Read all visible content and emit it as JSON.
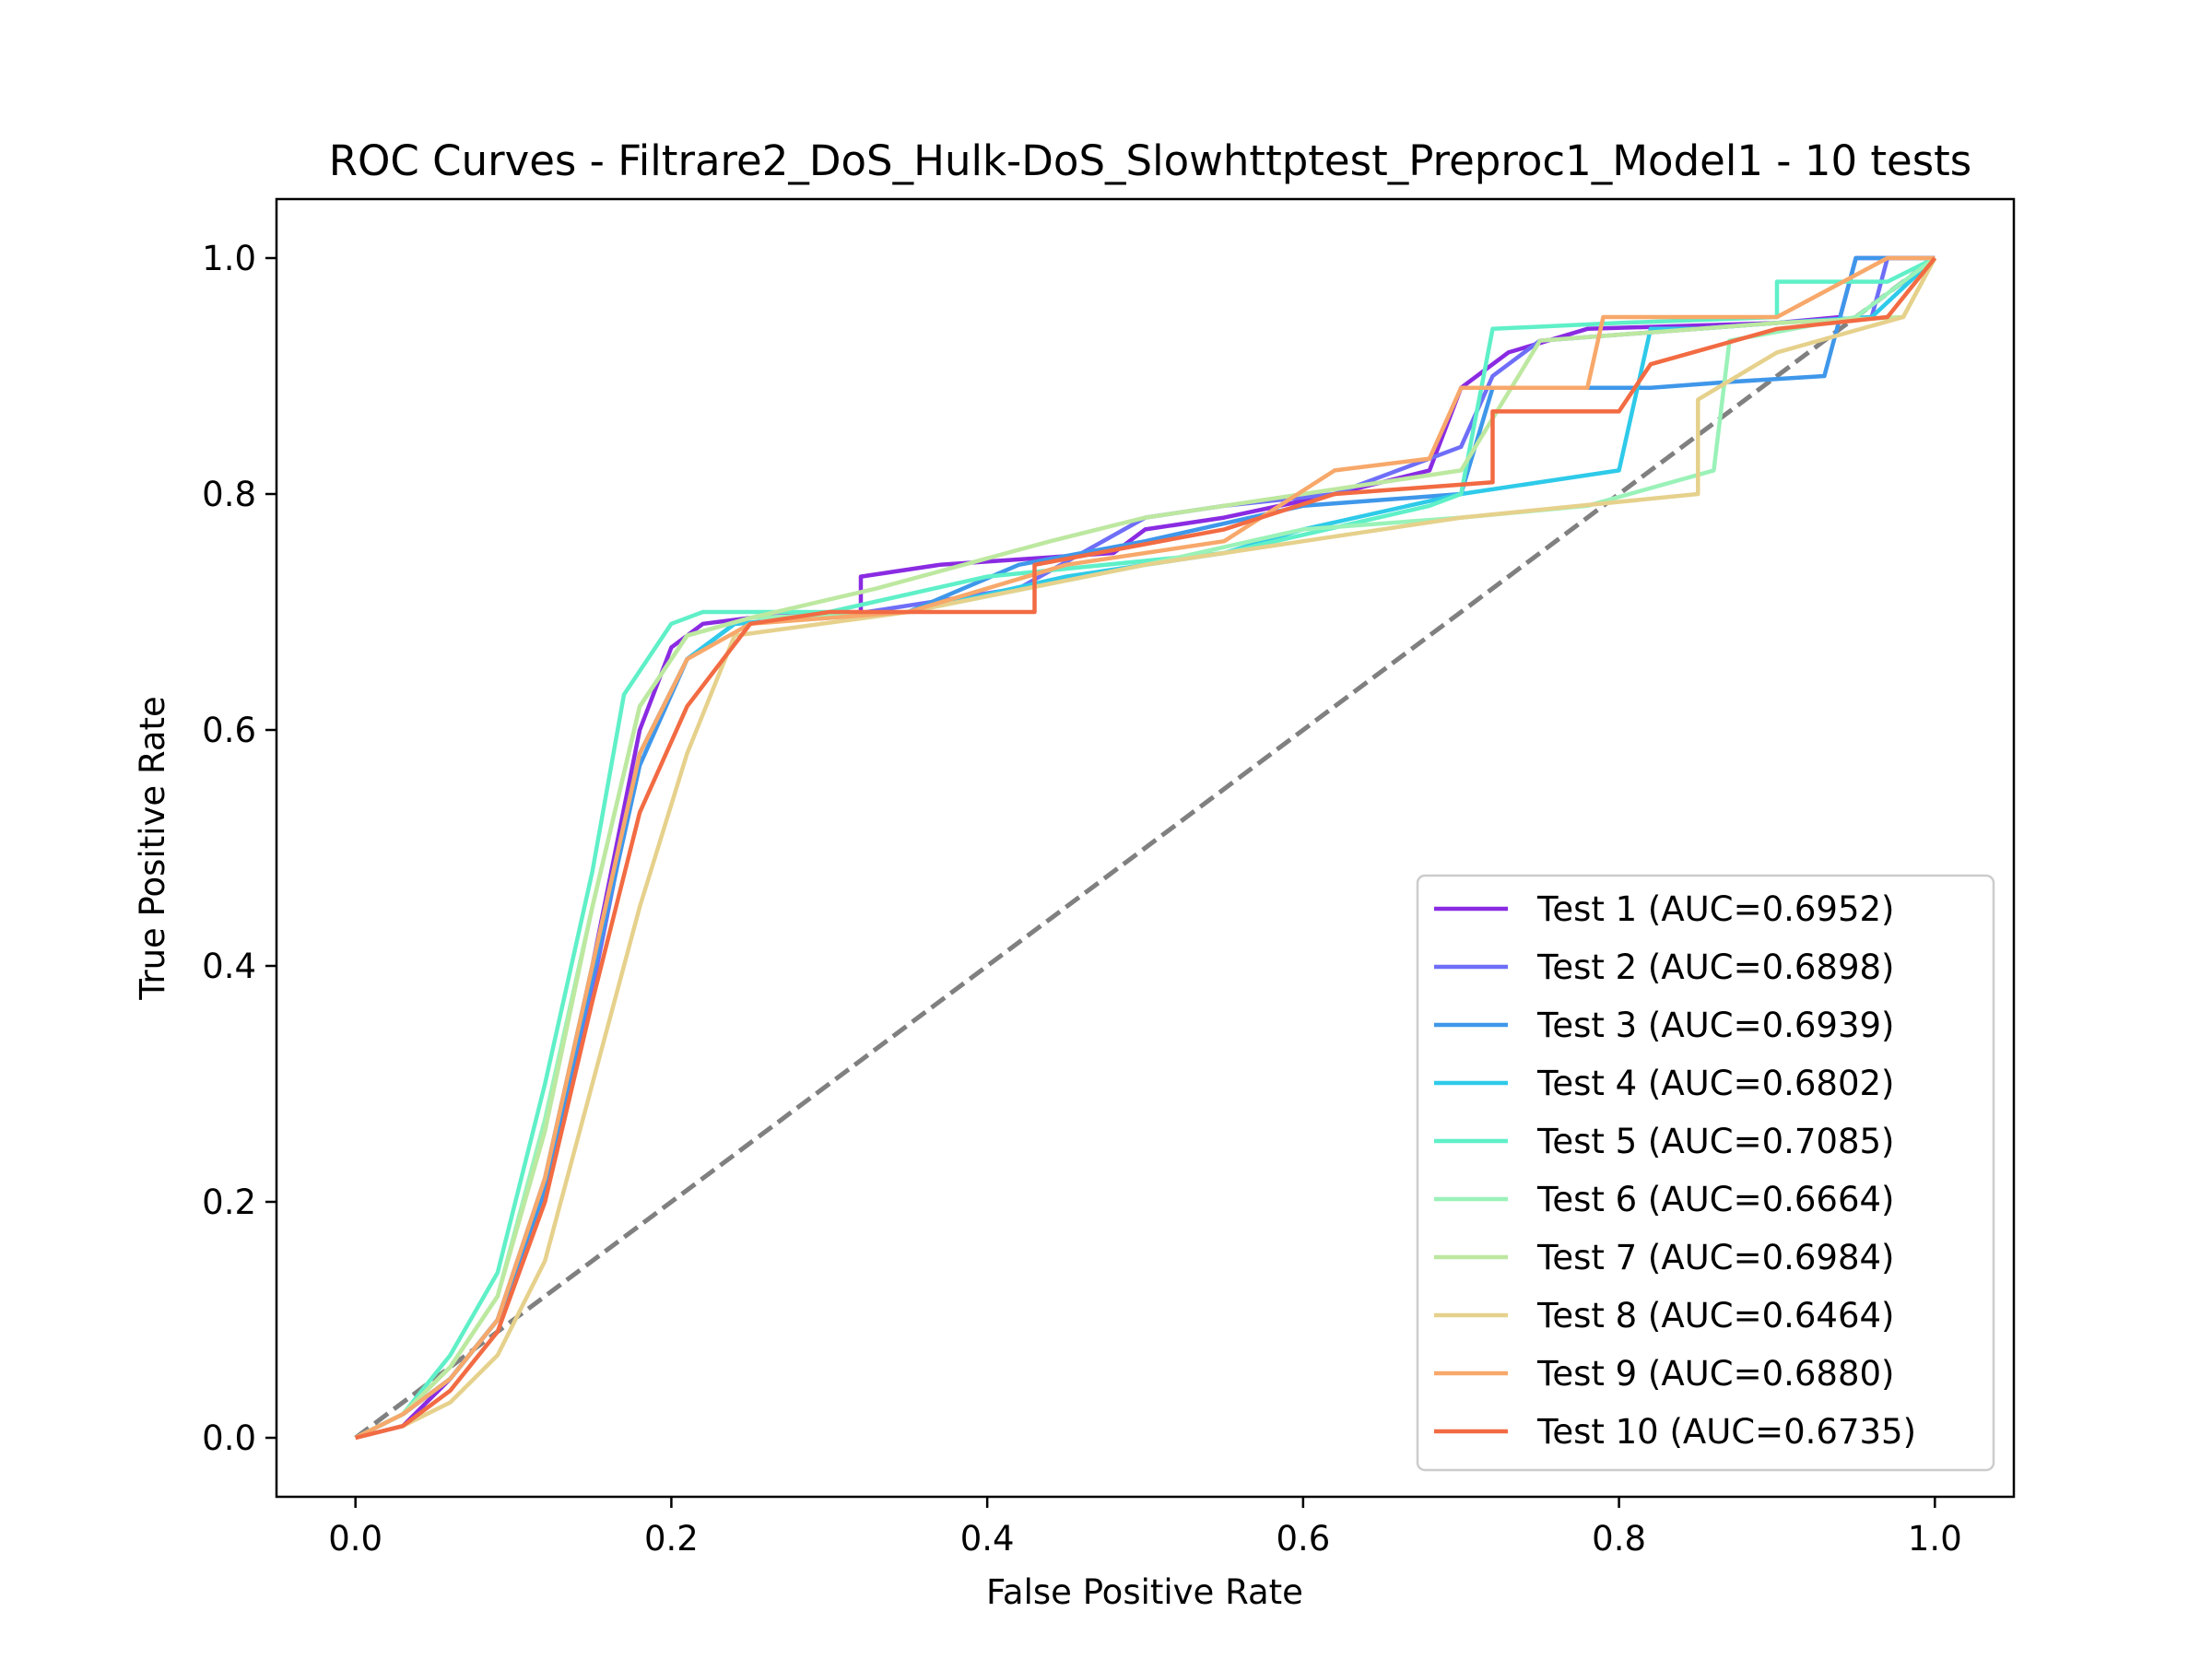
{
  "chart_data": {
    "type": "line",
    "title": "ROC Curves - Filtrare2_DoS_Hulk-DoS_Slowhttptest_Preproc1_Model1 - 10 tests",
    "xlabel": "False Positive Rate",
    "ylabel": "True Positive Rate",
    "xlim": [
      -0.05,
      1.05
    ],
    "ylim": [
      -0.05,
      1.05
    ],
    "xticks": [
      "0.0",
      "0.2",
      "0.4",
      "0.6",
      "0.8",
      "1.0"
    ],
    "yticks": [
      "0.0",
      "0.2",
      "0.4",
      "0.6",
      "0.8",
      "1.0"
    ],
    "grid": false,
    "legend_position": "lower-right",
    "diagonal": {
      "x": [
        0,
        1
      ],
      "y": [
        0,
        1
      ],
      "color": "#808080",
      "style": "dashed"
    },
    "series": [
      {
        "name": "Test 1 (AUC=0.6952)",
        "color": "#8a2be2",
        "x": [
          0,
          0.03,
          0.06,
          0.09,
          0.12,
          0.15,
          0.18,
          0.2,
          0.22,
          0.25,
          0.32,
          0.32,
          0.37,
          0.48,
          0.5,
          0.55,
          0.62,
          0.68,
          0.7,
          0.73,
          0.78,
          0.9,
          0.94,
          0.95,
          0.97,
          1.0
        ],
        "y": [
          0,
          0.01,
          0.05,
          0.1,
          0.22,
          0.4,
          0.6,
          0.67,
          0.69,
          0.695,
          0.7,
          0.73,
          0.74,
          0.75,
          0.77,
          0.78,
          0.8,
          0.82,
          0.89,
          0.92,
          0.94,
          0.945,
          0.95,
          1.0,
          1.0,
          1.0
        ]
      },
      {
        "name": "Test 2 (AUC=0.6898)",
        "color": "#6e6ef8",
        "x": [
          0,
          0.03,
          0.06,
          0.09,
          0.12,
          0.15,
          0.18,
          0.21,
          0.24,
          0.3,
          0.42,
          0.5,
          0.55,
          0.62,
          0.7,
          0.72,
          0.75,
          0.85,
          0.9,
          0.96,
          0.97,
          1.0
        ],
        "y": [
          0,
          0.02,
          0.05,
          0.1,
          0.21,
          0.38,
          0.58,
          0.66,
          0.69,
          0.695,
          0.72,
          0.78,
          0.79,
          0.8,
          0.84,
          0.9,
          0.93,
          0.94,
          0.945,
          0.95,
          1.0,
          1.0
        ]
      },
      {
        "name": "Test 3 (AUC=0.6939)",
        "color": "#3f97ea",
        "x": [
          0,
          0.03,
          0.06,
          0.09,
          0.12,
          0.15,
          0.18,
          0.21,
          0.24,
          0.35,
          0.42,
          0.5,
          0.6,
          0.7,
          0.72,
          0.82,
          0.87,
          0.93,
          0.95,
          0.98,
          1.0
        ],
        "y": [
          0,
          0.02,
          0.05,
          0.1,
          0.21,
          0.39,
          0.57,
          0.66,
          0.69,
          0.7,
          0.74,
          0.76,
          0.79,
          0.8,
          0.89,
          0.89,
          0.895,
          0.9,
          1.0,
          1.0,
          1.0
        ]
      },
      {
        "name": "Test 4 (AUC=0.6802)",
        "color": "#2ecae9",
        "x": [
          0,
          0.03,
          0.06,
          0.09,
          0.12,
          0.15,
          0.18,
          0.21,
          0.24,
          0.35,
          0.45,
          0.55,
          0.6,
          0.7,
          0.8,
          0.82,
          0.85,
          0.9,
          0.96,
          1.0
        ],
        "y": [
          0,
          0.02,
          0.05,
          0.1,
          0.22,
          0.4,
          0.58,
          0.66,
          0.69,
          0.7,
          0.73,
          0.75,
          0.77,
          0.8,
          0.82,
          0.94,
          0.94,
          0.945,
          0.95,
          1.0
        ]
      },
      {
        "name": "Test 5 (AUC=0.7085)",
        "color": "#5ff0c8",
        "x": [
          0,
          0.03,
          0.06,
          0.09,
          0.12,
          0.15,
          0.17,
          0.2,
          0.22,
          0.3,
          0.4,
          0.55,
          0.68,
          0.7,
          0.72,
          0.8,
          0.9,
          0.9,
          0.97,
          1.0
        ],
        "y": [
          0,
          0.02,
          0.07,
          0.14,
          0.3,
          0.48,
          0.63,
          0.69,
          0.7,
          0.7,
          0.73,
          0.75,
          0.79,
          0.8,
          0.94,
          0.945,
          0.95,
          0.98,
          0.98,
          1.0
        ]
      },
      {
        "name": "Test 6 (AUC=0.6664)",
        "color": "#9af2b8",
        "x": [
          0,
          0.03,
          0.06,
          0.09,
          0.12,
          0.15,
          0.18,
          0.21,
          0.25,
          0.35,
          0.5,
          0.6,
          0.7,
          0.78,
          0.86,
          0.87,
          0.95,
          1.0
        ],
        "y": [
          0,
          0.02,
          0.06,
          0.12,
          0.27,
          0.45,
          0.62,
          0.68,
          0.695,
          0.7,
          0.74,
          0.77,
          0.78,
          0.79,
          0.82,
          0.93,
          0.95,
          1.0
        ]
      },
      {
        "name": "Test 7 (AUC=0.6984)",
        "color": "#bde8a0",
        "x": [
          0,
          0.03,
          0.06,
          0.09,
          0.12,
          0.15,
          0.18,
          0.21,
          0.25,
          0.33,
          0.44,
          0.5,
          0.6,
          0.7,
          0.75,
          0.9,
          0.98,
          1.0
        ],
        "y": [
          0,
          0.02,
          0.06,
          0.12,
          0.26,
          0.45,
          0.62,
          0.68,
          0.695,
          0.72,
          0.76,
          0.78,
          0.8,
          0.82,
          0.93,
          0.945,
          0.95,
          1.0
        ]
      },
      {
        "name": "Test 8 (AUC=0.6464)",
        "color": "#e6d18c",
        "x": [
          0,
          0.03,
          0.06,
          0.09,
          0.12,
          0.15,
          0.18,
          0.21,
          0.24,
          0.35,
          0.5,
          0.6,
          0.7,
          0.85,
          0.85,
          0.9,
          0.98,
          1.0
        ],
        "y": [
          0,
          0.01,
          0.03,
          0.07,
          0.15,
          0.3,
          0.45,
          0.58,
          0.68,
          0.7,
          0.74,
          0.76,
          0.78,
          0.8,
          0.88,
          0.92,
          0.95,
          1.0
        ]
      },
      {
        "name": "Test 9 (AUC=0.6880)",
        "color": "#f7a86a",
        "x": [
          0,
          0.03,
          0.06,
          0.09,
          0.12,
          0.15,
          0.18,
          0.21,
          0.25,
          0.35,
          0.45,
          0.55,
          0.62,
          0.68,
          0.7,
          0.78,
          0.79,
          0.9,
          0.97,
          1.0
        ],
        "y": [
          0,
          0.02,
          0.05,
          0.1,
          0.22,
          0.4,
          0.58,
          0.66,
          0.69,
          0.7,
          0.74,
          0.76,
          0.82,
          0.83,
          0.89,
          0.89,
          0.95,
          0.95,
          1.0,
          1.0
        ]
      },
      {
        "name": "Test 10 (AUC=0.6735)",
        "color": "#f26b43",
        "x": [
          0,
          0.03,
          0.06,
          0.09,
          0.12,
          0.15,
          0.18,
          0.21,
          0.25,
          0.3,
          0.43,
          0.43,
          0.55,
          0.62,
          0.72,
          0.72,
          0.8,
          0.82,
          0.9,
          0.97,
          1.0
        ],
        "y": [
          0,
          0.01,
          0.04,
          0.09,
          0.2,
          0.37,
          0.53,
          0.62,
          0.69,
          0.7,
          0.7,
          0.74,
          0.77,
          0.8,
          0.81,
          0.87,
          0.87,
          0.91,
          0.94,
          0.95,
          1.0
        ]
      }
    ]
  }
}
